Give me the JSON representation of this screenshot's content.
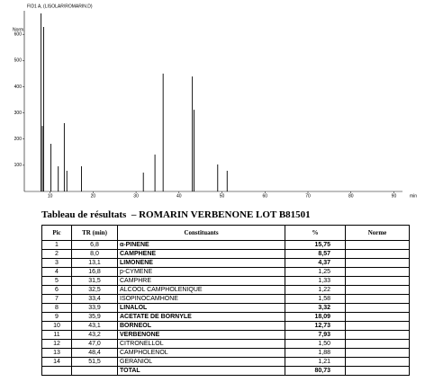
{
  "chart_data": {
    "type": "stem",
    "title": "FID1 A, (LISOLAR\\ROMARIN.D)",
    "y_label": "Norm.",
    "x_label": "min",
    "x": [
      7.9,
      8.2,
      8.5,
      10.2,
      11.9,
      13.3,
      13.9,
      17.3,
      31.7,
      34.4,
      36.3,
      43.1,
      43.5,
      49.0,
      51.2
    ],
    "values": [
      680,
      250,
      628,
      182,
      96,
      261,
      79,
      96,
      72,
      141,
      450,
      439,
      312,
      103,
      79
    ],
    "color": "#000000",
    "xlim": [
      4,
      92
    ],
    "xticks": [
      10,
      20,
      30,
      40,
      50,
      60,
      70,
      80,
      90
    ],
    "ylim": [
      0,
      690
    ],
    "yticks": [
      100,
      200,
      300,
      400,
      500,
      600
    ]
  },
  "table": {
    "title": "Tableau de résultats  – ROMARIN VERBENONE LOT B81501",
    "headers": [
      "Pic",
      "TR (min)",
      "Constituants",
      "%",
      "Norme"
    ],
    "rows": [
      {
        "cells": [
          "1",
          "6,8",
          "α-PINENE",
          "15,75",
          ""
        ],
        "bold": true
      },
      {
        "cells": [
          "2",
          "8,0",
          "CAMPHENE",
          "8,57",
          ""
        ],
        "bold": true
      },
      {
        "cells": [
          "3",
          "13,1",
          "LIMONENE",
          "4,37",
          ""
        ],
        "bold": true
      },
      {
        "cells": [
          "4",
          "16,8",
          "p-CYMENE",
          "1,25",
          ""
        ],
        "bold": false
      },
      {
        "cells": [
          "5",
          "31,5",
          "CAMPHRE",
          "1,33",
          ""
        ],
        "bold": false
      },
      {
        "cells": [
          "6",
          "32,5",
          "ALCOOL CAMPHOLENIQUE",
          "1,22",
          ""
        ],
        "bold": false
      },
      {
        "cells": [
          "7",
          "33,4",
          "ISOPINOCAMHONE",
          "1,58",
          ""
        ],
        "bold": false
      },
      {
        "cells": [
          "8",
          "33,9",
          "LINALOL",
          "3,32",
          ""
        ],
        "bold": true
      },
      {
        "cells": [
          "9",
          "35,9",
          "ACETATE DE BORNYLE",
          "18,09",
          ""
        ],
        "bold": true
      },
      {
        "cells": [
          "10",
          "43,1",
          "BORNEOL",
          "12,73",
          ""
        ],
        "bold": true
      },
      {
        "cells": [
          "11",
          "43,2",
          "VERBENONE",
          "7,93",
          ""
        ],
        "bold": true
      },
      {
        "cells": [
          "12",
          "47,0",
          "CITRONELLOL",
          "1,50",
          ""
        ],
        "bold": false
      },
      {
        "cells": [
          "13",
          "48,4",
          "CAMPHOLENOL",
          "1,88",
          ""
        ],
        "bold": false
      },
      {
        "cells": [
          "14",
          "51,5",
          "GERANIOL",
          "1,21",
          ""
        ],
        "bold": false
      },
      {
        "cells": [
          "",
          "",
          "TOTAL",
          "80,73",
          ""
        ],
        "bold": true
      }
    ]
  }
}
